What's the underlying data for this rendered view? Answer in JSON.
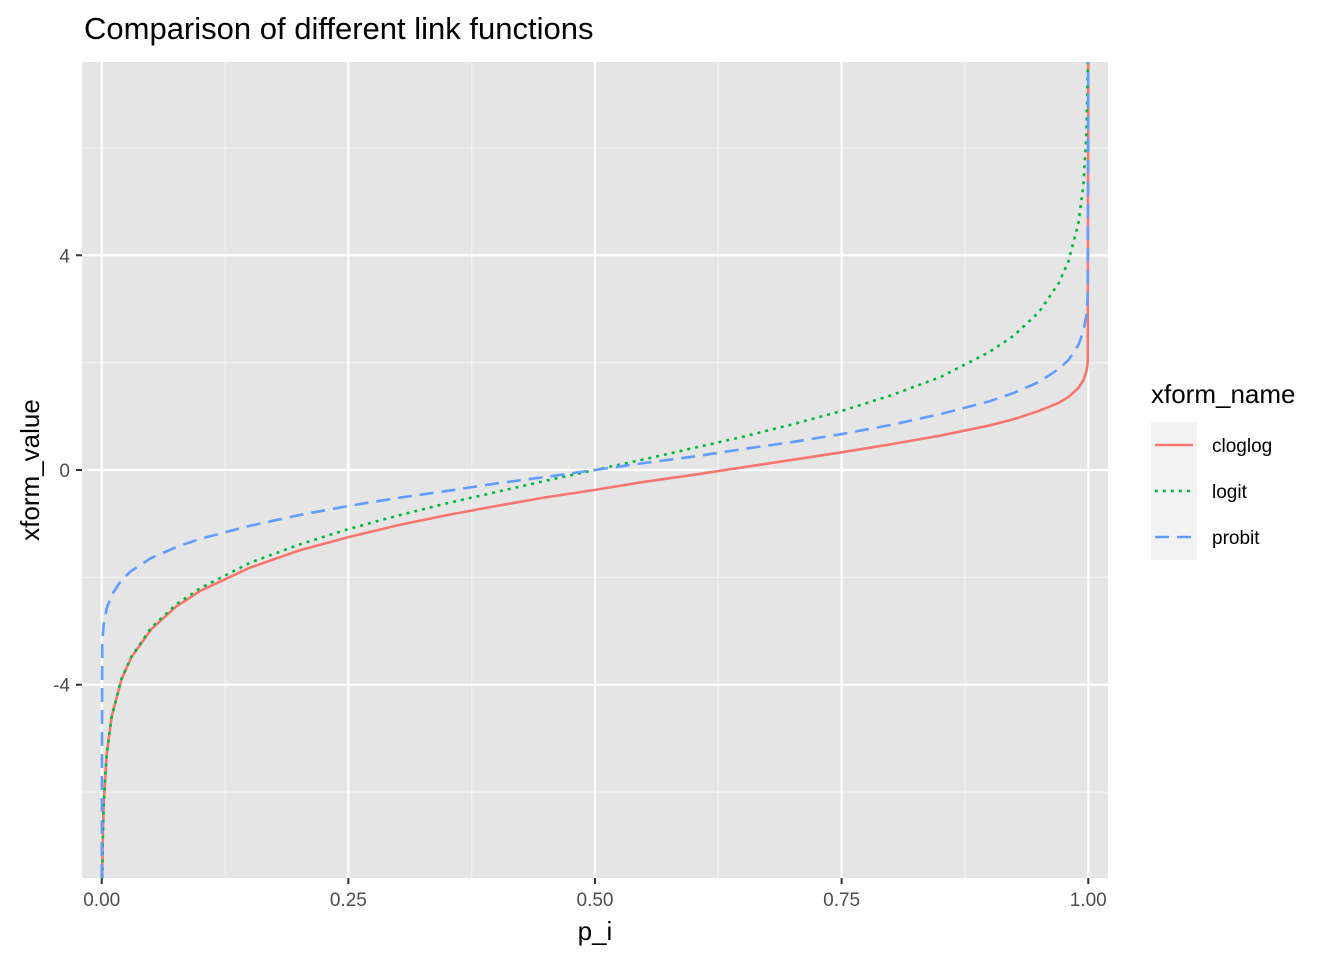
{
  "chart_data": {
    "type": "line",
    "title": "Comparison of different link functions",
    "xlabel": "p_i",
    "ylabel": "xform_value",
    "xlim": [
      -0.02,
      1.02
    ],
    "ylim": [
      -7.6,
      7.6
    ],
    "x_ticks": [
      0,
      0.25,
      0.5,
      0.75,
      1
    ],
    "x_tick_labels": [
      "0.00",
      "0.25",
      "0.50",
      "0.75",
      "1.00"
    ],
    "y_ticks": [
      -4,
      0,
      4
    ],
    "y_tick_labels": [
      "-4",
      "0",
      "4"
    ],
    "grid": true,
    "background": "#e5e5e5",
    "legend": {
      "title": "xform_name",
      "placement": "right"
    },
    "x": [
      0.0005,
      0.001,
      0.002,
      0.005,
      0.01,
      0.02,
      0.03,
      0.05,
      0.075,
      0.1,
      0.15,
      0.2,
      0.25,
      0.3,
      0.35,
      0.4,
      0.45,
      0.5,
      0.55,
      0.6,
      0.65,
      0.7,
      0.75,
      0.8,
      0.85,
      0.9,
      0.925,
      0.95,
      0.97,
      0.98,
      0.99,
      0.995,
      0.998,
      0.999,
      0.9995
    ],
    "series": [
      {
        "name": "cloglog",
        "color": "#f8766d",
        "dash": "",
        "values": [
          -7.6,
          -6.91,
          -6.21,
          -5.3,
          -4.6,
          -3.9,
          -3.49,
          -2.97,
          -2.55,
          -2.25,
          -1.82,
          -1.5,
          -1.25,
          -1.03,
          -0.84,
          -0.67,
          -0.51,
          -0.37,
          -0.22,
          -0.09,
          0.05,
          0.19,
          0.33,
          0.48,
          0.64,
          0.83,
          0.95,
          1.1,
          1.25,
          1.36,
          1.53,
          1.67,
          1.83,
          1.93,
          2.03
        ]
      },
      {
        "name": "logit",
        "color": "#00ba38",
        "dash": "3,5",
        "values": [
          -7.6,
          -6.91,
          -6.21,
          -5.29,
          -4.6,
          -3.89,
          -3.48,
          -2.94,
          -2.51,
          -2.2,
          -1.73,
          -1.39,
          -1.1,
          -0.85,
          -0.62,
          -0.41,
          -0.2,
          0,
          0.2,
          0.41,
          0.62,
          0.85,
          1.1,
          1.39,
          1.73,
          2.2,
          2.51,
          2.94,
          3.48,
          3.89,
          4.6,
          5.29,
          6.21,
          6.91,
          7.6
        ]
      },
      {
        "name": "probit",
        "color": "#619cff",
        "dash": "14,8",
        "values": [
          -3.29,
          -3.09,
          -2.88,
          -2.58,
          -2.33,
          -2.05,
          -1.88,
          -1.64,
          -1.44,
          -1.28,
          -1.04,
          -0.84,
          -0.67,
          -0.52,
          -0.39,
          -0.25,
          -0.13,
          0,
          0.13,
          0.25,
          0.39,
          0.52,
          0.67,
          0.84,
          1.04,
          1.28,
          1.44,
          1.64,
          1.88,
          2.05,
          2.33,
          2.58,
          2.88,
          3.09,
          3.29
        ]
      }
    ]
  }
}
